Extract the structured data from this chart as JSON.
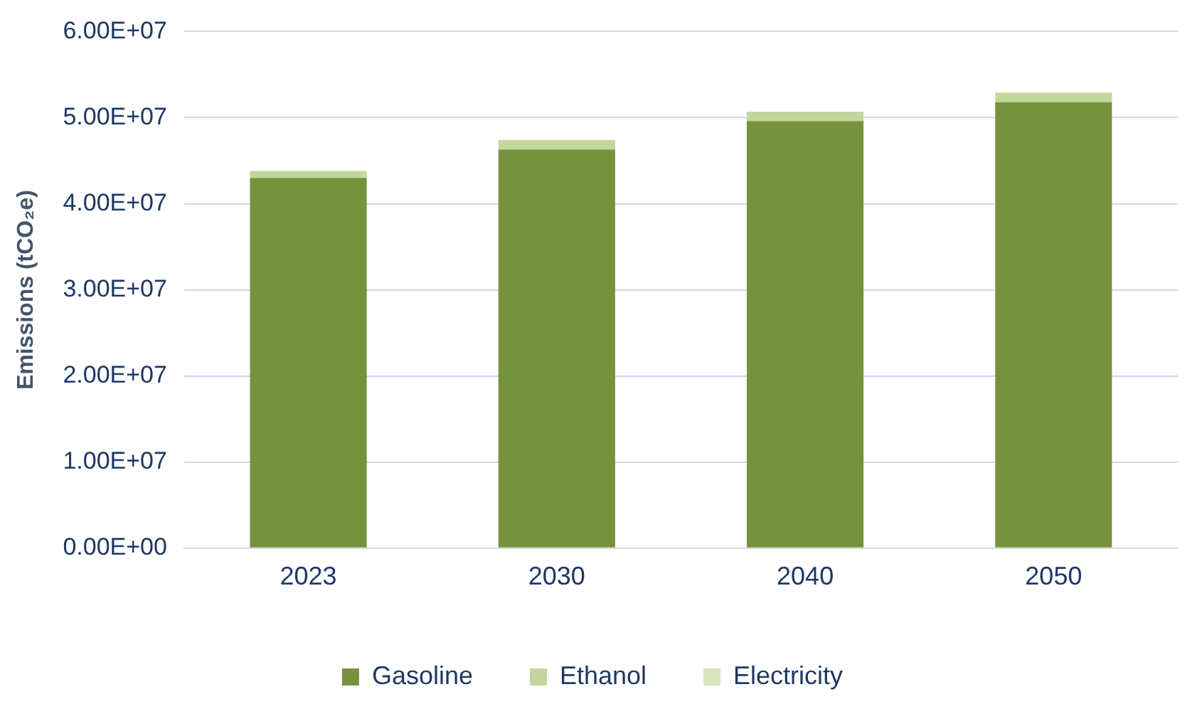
{
  "chart_data": {
    "type": "bar",
    "stacked": true,
    "ylabel": "Emissions (tCO₂e)",
    "categories": [
      "2023",
      "2030",
      "2040",
      "2050"
    ],
    "series": [
      {
        "name": "Gasoline",
        "color": "#76923c",
        "values": [
          43000000,
          46300000,
          49600000,
          51800000
        ]
      },
      {
        "name": "Ethanol",
        "color": "#c3d69b",
        "values": [
          800000,
          1100000,
          1100000,
          1100000
        ]
      },
      {
        "name": "Electricity",
        "color": "#d7e4bd",
        "values": [
          null,
          null,
          null,
          null
        ]
      }
    ],
    "ylim": [
      0,
      60000000
    ],
    "yticks": [
      {
        "value": 0,
        "label": "0.00E+00"
      },
      {
        "value": 10000000,
        "label": "1.00E+07"
      },
      {
        "value": 20000000,
        "label": "2.00E+07"
      },
      {
        "value": 30000000,
        "label": "3.00E+07"
      },
      {
        "value": 40000000,
        "label": "4.00E+07"
      },
      {
        "value": 50000000,
        "label": "5.00E+07"
      },
      {
        "value": 60000000,
        "label": "6.00E+07"
      }
    ],
    "grid": "y",
    "legend": "bottom"
  }
}
